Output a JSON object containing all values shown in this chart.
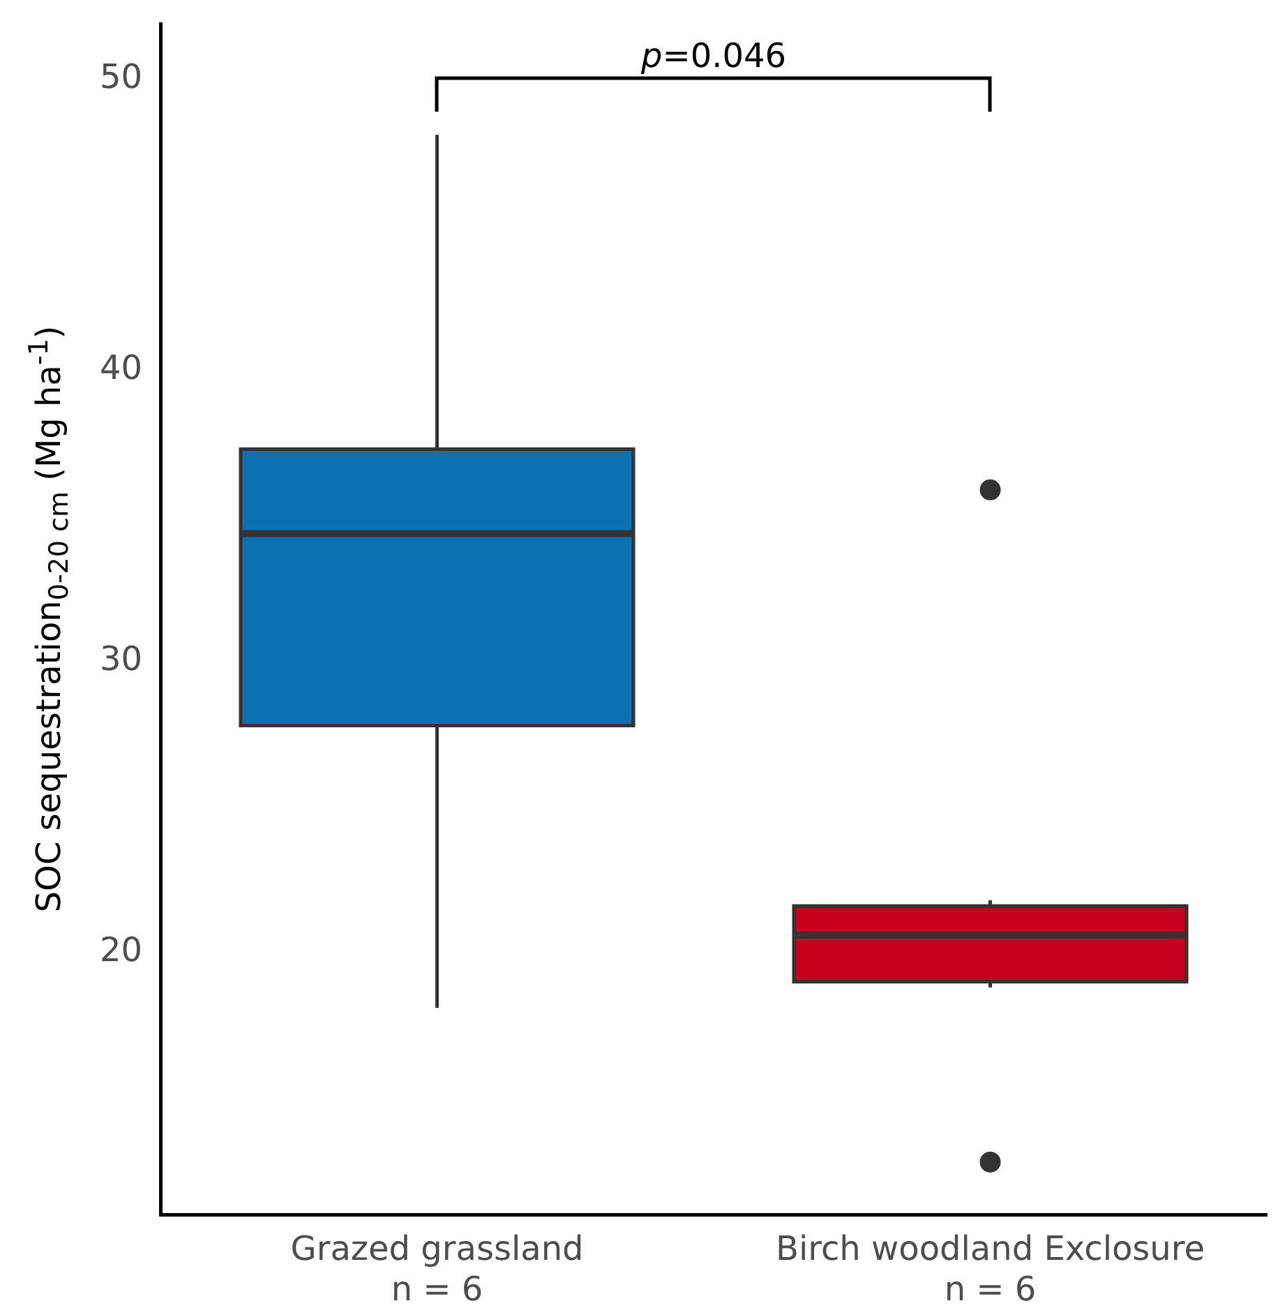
{
  "chart_data": {
    "type": "box",
    "categories": [
      "Grazed grassland\nn = 6",
      "Birch woodland Exclosure\nn = 6"
    ],
    "colors": [
      "#0a70b0",
      "#c8001e"
    ],
    "boxes": [
      {
        "low": 18.1,
        "q1": 27.8,
        "median": 34.4,
        "q3": 37.3,
        "high": 48.1
      },
      {
        "low": 18.8,
        "q1": 19.0,
        "median": 20.6,
        "q3": 21.6,
        "high": 21.8,
        "outliers": [
          35.9,
          12.8
        ]
      }
    ],
    "ylabel": "SOC sequestration$_{0-20 cm}$ (Mg ha$^{-1}$)",
    "ylim": [
      11,
      51.9
    ],
    "yticks": [
      20,
      30,
      40,
      50
    ],
    "grid": false,
    "legend": false,
    "annotations": [
      "p=0.046"
    ]
  }
}
